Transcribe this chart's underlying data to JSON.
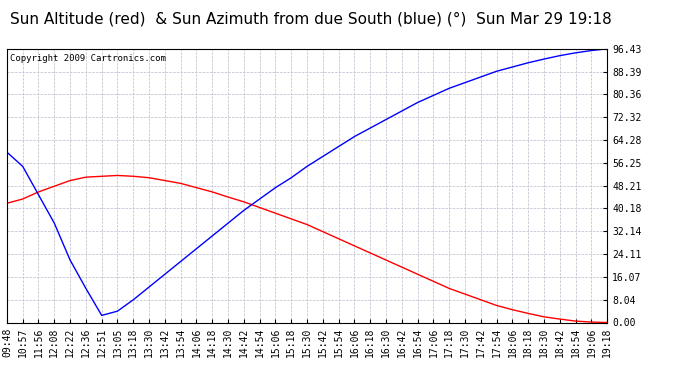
{
  "title": "Sun Altitude (red)  & Sun Azimuth from due South (blue) (°)  Sun Mar 29 19:18",
  "copyright": "Copyright 2009 Cartronics.com",
  "bg_color": "#ffffff",
  "grid_color": "#bbbbcc",
  "ymax": 96.43,
  "ymin": 0.0,
  "yticks": [
    0.0,
    8.04,
    16.07,
    24.11,
    32.14,
    40.18,
    48.21,
    56.25,
    64.28,
    72.32,
    80.36,
    88.39,
    96.43
  ],
  "ytick_labels": [
    "0.00",
    "8.04",
    "16.07",
    "24.11",
    "32.14",
    "40.18",
    "48.21",
    "56.25",
    "64.28",
    "72.32",
    "80.36",
    "88.39",
    "96.43"
  ],
  "x_labels": [
    "09:48",
    "10:57",
    "11:56",
    "12:08",
    "12:22",
    "12:36",
    "12:51",
    "13:05",
    "13:18",
    "13:30",
    "13:42",
    "13:54",
    "14:06",
    "14:18",
    "14:30",
    "14:42",
    "14:54",
    "15:06",
    "15:18",
    "15:30",
    "15:42",
    "15:54",
    "16:06",
    "16:18",
    "16:30",
    "16:42",
    "16:54",
    "17:06",
    "17:18",
    "17:30",
    "17:42",
    "17:54",
    "18:06",
    "18:18",
    "18:30",
    "18:42",
    "18:54",
    "19:06",
    "19:18"
  ],
  "red_vals": [
    42.0,
    43.5,
    46.0,
    48.0,
    50.0,
    51.2,
    51.5,
    51.8,
    51.5,
    51.0,
    50.0,
    49.0,
    47.5,
    46.0,
    44.2,
    42.5,
    40.5,
    38.5,
    36.5,
    34.5,
    32.0,
    29.5,
    27.0,
    24.5,
    22.0,
    19.5,
    17.0,
    14.5,
    12.0,
    10.0,
    8.0,
    6.0,
    4.5,
    3.2,
    2.0,
    1.2,
    0.5,
    0.15,
    0.0
  ],
  "blue_vals": [
    60.0,
    55.0,
    45.0,
    35.0,
    22.0,
    12.0,
    2.5,
    4.0,
    8.0,
    12.5,
    17.0,
    21.5,
    26.0,
    30.5,
    35.0,
    39.5,
    43.5,
    47.5,
    51.0,
    55.0,
    58.5,
    62.0,
    65.5,
    68.5,
    71.5,
    74.5,
    77.5,
    80.0,
    82.5,
    84.5,
    86.5,
    88.5,
    90.0,
    91.5,
    92.8,
    94.0,
    95.0,
    95.8,
    96.43
  ],
  "red_line_color": "#ff0000",
  "blue_line_color": "#0000ff",
  "axis_color": "#000000",
  "title_fontsize": 11,
  "tick_fontsize": 7
}
